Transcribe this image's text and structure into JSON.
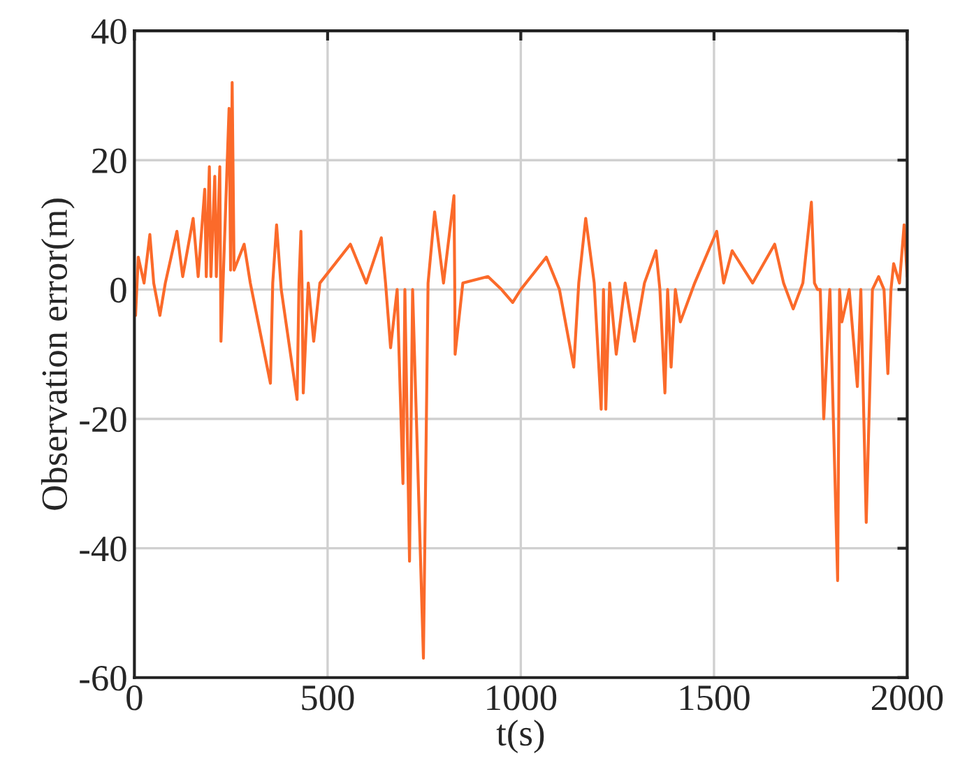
{
  "chart_data": {
    "type": "line",
    "xlabel": "t(s)",
    "ylabel": "Observation error(m)",
    "xlim": [
      0,
      2000
    ],
    "ylim": [
      -60,
      40
    ],
    "xticks": [
      0,
      500,
      1000,
      1500,
      2000
    ],
    "yticks": [
      -60,
      -40,
      -20,
      0,
      20,
      40
    ],
    "grid": true,
    "series": [
      {
        "color": "#fb6a2a",
        "x": [
          0,
          3,
          10,
          25,
          40,
          50,
          66,
          80,
          110,
          125,
          152,
          165,
          182,
          186,
          194,
          198,
          208,
          212,
          221,
          223,
          224,
          230,
          245,
          249,
          253,
          258,
          284,
          300,
          352,
          358,
          368,
          380,
          421,
          426,
          431,
          434,
          437,
          450,
          464,
          480,
          559,
          600,
          639,
          650,
          663,
          680,
          695,
          700,
          712,
          720,
          748,
          760,
          777,
          800,
          827,
          829,
          830,
          850,
          915,
          950,
          979,
          1000,
          1066,
          1100,
          1137,
          1150,
          1168,
          1190,
          1208,
          1214,
          1220,
          1230,
          1247,
          1270,
          1294,
          1320,
          1350,
          1360,
          1373,
          1380,
          1389,
          1400,
          1413,
          1450,
          1507,
          1525,
          1547,
          1600,
          1657,
          1680,
          1705,
          1730,
          1752,
          1760,
          1768,
          1775,
          1784,
          1800,
          1820,
          1825,
          1831,
          1850,
          1871,
          1880,
          1894,
          1910,
          1926,
          1940,
          1950,
          1958,
          1965,
          1980,
          1992,
          2000
        ],
        "values": [
          0,
          -4,
          5,
          1,
          8.5,
          1,
          -4,
          1,
          9,
          2,
          11,
          2,
          15.5,
          2,
          19,
          2,
          17.5,
          2,
          19,
          2,
          -8,
          2,
          28,
          3,
          32,
          3,
          7,
          1,
          -14.5,
          1,
          10,
          0,
          -17,
          1,
          9,
          0,
          -16,
          1,
          -8,
          1,
          7,
          1,
          8,
          1,
          -9,
          0,
          -30,
          0,
          -42,
          0,
          -57,
          1,
          12,
          1,
          14.5,
          1,
          -10,
          1,
          2,
          0,
          -2,
          0,
          5,
          0,
          -12,
          1,
          11,
          1,
          -18.5,
          0,
          -18.5,
          1,
          -10,
          1,
          -8,
          1,
          6,
          0,
          -16,
          0,
          -12,
          0,
          -5,
          1,
          9,
          1,
          6,
          1,
          7,
          1,
          -3,
          1,
          13.5,
          1,
          0,
          0,
          -20,
          0,
          -45,
          0,
          -5,
          0,
          -15,
          0,
          -36,
          0,
          2,
          0,
          -13,
          0,
          4,
          1,
          10,
          2
        ]
      }
    ]
  }
}
